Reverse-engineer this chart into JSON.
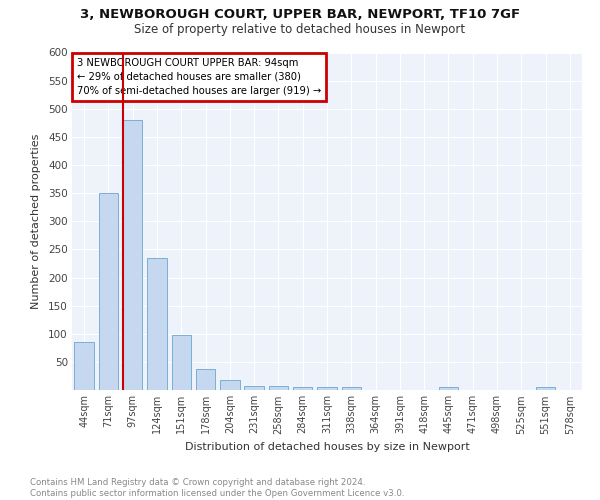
{
  "title1": "3, NEWBOROUGH COURT, UPPER BAR, NEWPORT, TF10 7GF",
  "title2": "Size of property relative to detached houses in Newport",
  "xlabel": "Distribution of detached houses by size in Newport",
  "ylabel": "Number of detached properties",
  "categories": [
    "44sqm",
    "71sqm",
    "97sqm",
    "124sqm",
    "151sqm",
    "178sqm",
    "204sqm",
    "231sqm",
    "258sqm",
    "284sqm",
    "311sqm",
    "338sqm",
    "364sqm",
    "391sqm",
    "418sqm",
    "445sqm",
    "471sqm",
    "498sqm",
    "525sqm",
    "551sqm",
    "578sqm"
  ],
  "values": [
    85,
    350,
    480,
    235,
    97,
    37,
    18,
    8,
    8,
    5,
    5,
    5,
    0,
    0,
    0,
    6,
    0,
    0,
    0,
    5,
    0
  ],
  "bar_color": "#c5d8f0",
  "bar_edge_color": "#7bafd4",
  "annotation_text": "3 NEWBOROUGH COURT UPPER BAR: 94sqm\n← 29% of detached houses are smaller (380)\n70% of semi-detached houses are larger (919) →",
  "vline_color": "#cc0000",
  "box_edge_color": "#cc0000",
  "ylim": [
    0,
    600
  ],
  "yticks": [
    0,
    50,
    100,
    150,
    200,
    250,
    300,
    350,
    400,
    450,
    500,
    550,
    600
  ],
  "footnote": "Contains HM Land Registry data © Crown copyright and database right 2024.\nContains public sector information licensed under the Open Government Licence v3.0.",
  "bg_color": "#ffffff",
  "plot_bg_color": "#eef2fb",
  "grid_color": "#ffffff",
  "title1_fontsize": 9.5,
  "title2_fontsize": 8.5
}
